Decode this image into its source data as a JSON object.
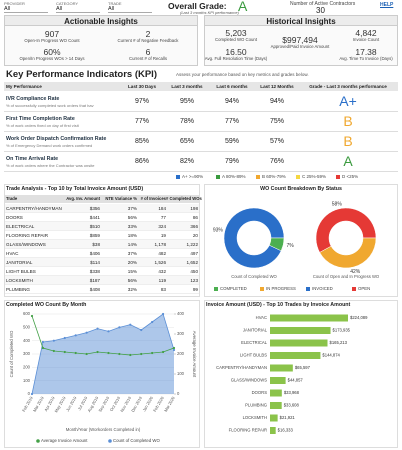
{
  "filters": [
    {
      "label": "PROVIDER",
      "value": "All"
    },
    {
      "label": "CATEGORY",
      "value": "All"
    },
    {
      "label": "TRADE",
      "value": "All"
    }
  ],
  "overall_grade": {
    "label": "Overall Grade:",
    "grade": "A",
    "note": "(Last 3 months KPI performance)",
    "color": "#3a9a3e"
  },
  "active_contractors": {
    "label": "Number of Active Contractors",
    "value": "30"
  },
  "help": "HELP",
  "actionable": {
    "title": "Actionable Insights",
    "items": [
      {
        "value": "907",
        "label": "Open-In Progress WO Count"
      },
      {
        "value": "2",
        "label": "Current # of Negative Feedback"
      },
      {
        "value": "60%",
        "label": "Open/In Progress WOs > 14 Days"
      },
      {
        "value": "6",
        "label": "Current # of Recalls"
      }
    ]
  },
  "historical": {
    "title": "Historical Insights",
    "items": [
      {
        "value": "5,203",
        "label": "Completed WO Count"
      },
      {
        "value": "$997,494",
        "label": "Approved/Paid Invoice Amount"
      },
      {
        "value": "4,842",
        "label": "Invoice Count"
      },
      {
        "value": "16.50",
        "label": "Avg. Full Resolution Time (Days)"
      },
      {
        "value": "17.38",
        "label": "Avg. Time To Invoice (Days)"
      }
    ]
  },
  "kpi": {
    "title": "Key Performance Indicators (KPI)",
    "subtitle": "Assess your performance based on key metrics and grades below.",
    "columns": [
      "My Performance",
      "Last 30 Days",
      "Last 3 months",
      "Last 6 months",
      "Last 12 Months",
      "Grade - Last 3 months performance"
    ],
    "rows": [
      {
        "name": "IVR Compliance Rate",
        "desc": "% of successfully completed work orders that hav",
        "cells": [
          "97%",
          "95%",
          "94%",
          "94%"
        ],
        "grade": "A+",
        "grade_color": "#2a6fc9"
      },
      {
        "name": "First Time Completion Rate",
        "desc": "% of work orders fixed on day of first visit",
        "cells": [
          "77%",
          "78%",
          "77%",
          "75%"
        ],
        "grade": "B",
        "grade_color": "#f0a830"
      },
      {
        "name": "Work Order Dispatch Confirmation Rate",
        "desc": "% of Emergency Demand work orders confirmed",
        "cells": [
          "85%",
          "65%",
          "59%",
          "57%"
        ],
        "grade": "B",
        "grade_color": "#f0a830"
      },
      {
        "name": "On Time Arrival Rate",
        "desc": "% of work orders where the Contractor was onsite",
        "cells": [
          "86%",
          "82%",
          "79%",
          "76%"
        ],
        "grade": "A",
        "grade_color": "#3a9a3e"
      }
    ],
    "legend": [
      {
        "label": "A+ >=90%",
        "color": "#2a6fc9"
      },
      {
        "label": "A 80%-89%",
        "color": "#3a9a3e"
      },
      {
        "label": "B 60%-79%",
        "color": "#f0a830"
      },
      {
        "label": "C 25%-59%",
        "color": "#f5d742"
      },
      {
        "label": "D <25%",
        "color": "#e53935"
      }
    ]
  },
  "trade_table": {
    "title": "Trade Analysis - Top 10 by Total Invoice Amount (USD)",
    "columns": [
      "Trade",
      "Avg. Inv. Amount",
      "NTE Variance %",
      "# of Invoices",
      "# Completed WOs"
    ],
    "rows": [
      [
        "CARPENTRY/HANDYMAN",
        "$356",
        "37%",
        "184",
        "198"
      ],
      [
        "DOORS",
        "$441",
        "56%",
        "77",
        "86"
      ],
      [
        "ELECTRICAL",
        "$510",
        "33%",
        "324",
        "366"
      ],
      [
        "FLOORING REPAIR",
        "$859",
        "18%",
        "19",
        "20"
      ],
      [
        "GLASS/WINDOWS",
        "$38",
        "14%",
        "1,178",
        "1,222"
      ],
      [
        "HVAC",
        "$406",
        "37%",
        "482",
        "497"
      ],
      [
        "JANITORIAL",
        "$114",
        "20%",
        "1,526",
        "1,652"
      ],
      [
        "LIGHT BULBS",
        "$338",
        "15%",
        "432",
        "450"
      ],
      [
        "LOCKSMITH",
        "$187",
        "56%",
        "119",
        "123"
      ],
      [
        "PLUMBING",
        "$408",
        "32%",
        "83",
        "99"
      ]
    ]
  },
  "chart_data": [
    {
      "type": "pie",
      "title": "WO Count Breakdown By Status",
      "legend": [
        {
          "name": "COMPLETED",
          "color": "#4caf50"
        },
        {
          "name": "IN PROGRESS",
          "color": "#f0a830"
        },
        {
          "name": "INVOICED",
          "color": "#2a6fc9"
        },
        {
          "name": "OPEN",
          "color": "#e53935"
        }
      ],
      "pies": [
        {
          "label": "Count of Completed WO",
          "values": [
            93,
            7
          ],
          "value_labels": [
            "93%",
            "7%"
          ],
          "colors": [
            "#2a6fc9",
            "#4caf50"
          ]
        },
        {
          "label": "Count of Open and In Progress WO",
          "values": [
            58,
            42
          ],
          "value_labels": [
            "58%",
            "42%"
          ],
          "colors": [
            "#e53935",
            "#f0a830"
          ]
        }
      ]
    },
    {
      "type": "line",
      "title": "Completed WO Count By Month",
      "categories": [
        "Feb 2019",
        "Mar 2019",
        "Apr 2019",
        "May 2019",
        "Jun 2019",
        "Jul 2019",
        "Aug 2019",
        "Sep 2019",
        "Oct 2019",
        "Nov 2019",
        "Dec 2019",
        "Jan 2020",
        "Feb 2020",
        "Mar 2020"
      ],
      "xlabel": "Month/Year (Workorders Completed in)",
      "ylabel": "Count of Completed WO",
      "y2label": "Average Invoice Amount",
      "ylim": [
        0,
        600
      ],
      "yticks": [
        0,
        100,
        200,
        300,
        400,
        500,
        600
      ],
      "y2lim": [
        0,
        400
      ],
      "y2ticks": [
        0,
        100,
        200,
        300,
        400
      ],
      "grid": true,
      "series": [
        {
          "name": "Average Invoice Amount",
          "color": "#43a047",
          "axis": "y2",
          "values": [
            390,
            230,
            215,
            210,
            205,
            200,
            210,
            205,
            200,
            195,
            200,
            205,
            210,
            230
          ]
        },
        {
          "name": "Count of Completed WO",
          "color": "#5b8fd6",
          "fill": true,
          "values": [
            0,
            390,
            400,
            420,
            440,
            460,
            490,
            470,
            500,
            520,
            480,
            540,
            600,
            330
          ]
        }
      ]
    },
    {
      "type": "bar",
      "orientation": "horizontal",
      "title": "Invoice Amount (USD) - Top 10 Trades by Invoice Amount",
      "color": "#8bc34a",
      "categories": [
        "HVAC",
        "JANITORIAL",
        "ELECTRICAL",
        "LIGHT BULBS",
        "CARPENTRY/HANDYMAN",
        "GLASS/WINDOWS",
        "DOORS",
        "PLUMBING",
        "LOCKSMITH",
        "FLOORING REPAIR"
      ],
      "values": [
        224089,
        173935,
        165213,
        144874,
        65597,
        44857,
        33968,
        33608,
        21921,
        16333
      ],
      "value_labels": [
        "$224,089",
        "$173,935",
        "$165,213",
        "$144,874",
        "$65,597",
        "$44,857",
        "$33,968",
        "$33,608",
        "$21,921",
        "$16,333"
      ]
    }
  ]
}
